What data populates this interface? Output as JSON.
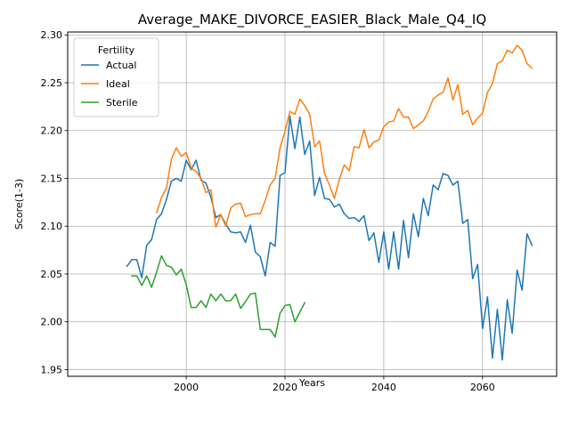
{
  "chart_data": {
    "type": "line",
    "title": "Average_MAKE_DIVORCE_EASIER_Black_Male_Q4_IQ",
    "xlabel": "Years",
    "ylabel": "Score(1-3)",
    "xlim": [
      1976,
      2075
    ],
    "ylim": [
      1.943,
      2.303
    ],
    "xticks": [
      2000,
      2020,
      2040,
      2060
    ],
    "yticks": [
      1.95,
      2.0,
      2.05,
      2.1,
      2.15,
      2.2,
      2.25,
      2.3
    ],
    "ytick_labels": [
      "1.95",
      "2.00",
      "2.05",
      "2.10",
      "2.15",
      "2.20",
      "2.25",
      "2.30"
    ],
    "grid": true,
    "legend": {
      "title": "Fertility",
      "placement": "top-left"
    },
    "series": [
      {
        "name": "Actual",
        "color": "#1f77b4",
        "x": [
          1988,
          1989,
          1990,
          1991,
          1992,
          1993,
          1994,
          1995,
          1996,
          1997,
          1998,
          1999,
          2000,
          2001,
          2002,
          2003,
          2004,
          2005,
          2006,
          2007,
          2008,
          2009,
          2010,
          2011,
          2012,
          2013,
          2014,
          2015,
          2016,
          2017,
          2018,
          2019,
          2020,
          2021,
          2022,
          2023,
          2024,
          2025,
          2026,
          2027,
          2028,
          2029,
          2030,
          2031,
          2032,
          2033,
          2034,
          2035,
          2036,
          2037,
          2038,
          2039,
          2040,
          2041,
          2042,
          2043,
          2044,
          2045,
          2046,
          2047,
          2048,
          2049,
          2050,
          2051,
          2052,
          2053,
          2054,
          2055,
          2056,
          2057,
          2058,
          2059,
          2060,
          2061,
          2062,
          2063,
          2064,
          2065,
          2066,
          2067,
          2068,
          2069,
          2070
        ],
        "values": [
          2.058,
          2.065,
          2.065,
          2.046,
          2.08,
          2.086,
          2.107,
          2.113,
          2.128,
          2.147,
          2.15,
          2.147,
          2.169,
          2.159,
          2.169,
          2.148,
          2.145,
          2.13,
          2.109,
          2.112,
          2.102,
          2.094,
          2.093,
          2.094,
          2.083,
          2.101,
          2.073,
          2.068,
          2.048,
          2.083,
          2.079,
          2.153,
          2.156,
          2.215,
          2.181,
          2.214,
          2.175,
          2.189,
          2.132,
          2.151,
          2.129,
          2.128,
          2.12,
          2.123,
          2.113,
          2.108,
          2.109,
          2.105,
          2.111,
          2.085,
          2.093,
          2.062,
          2.094,
          2.055,
          2.094,
          2.055,
          2.106,
          2.067,
          2.113,
          2.089,
          2.129,
          2.111,
          2.143,
          2.138,
          2.155,
          2.153,
          2.143,
          2.147,
          2.103,
          2.107,
          2.045,
          2.06,
          1.993,
          2.026,
          1.962,
          2.013,
          1.96,
          2.023,
          1.988,
          2.054,
          2.033,
          2.092,
          2.08
        ]
      },
      {
        "name": "Ideal",
        "color": "#ff7f0e",
        "x": [
          1994,
          1995,
          1996,
          1997,
          1998,
          1999,
          2000,
          2001,
          2002,
          2003,
          2004,
          2005,
          2006,
          2007,
          2008,
          2009,
          2010,
          2011,
          2012,
          2013,
          2014,
          2015,
          2016,
          2017,
          2018,
          2019,
          2020,
          2021,
          2022,
          2023,
          2024,
          2025,
          2026,
          2027,
          2028,
          2029,
          2030,
          2031,
          2032,
          2033,
          2034,
          2035,
          2036,
          2037,
          2038,
          2039,
          2040,
          2041,
          2042,
          2043,
          2044,
          2045,
          2046,
          2047,
          2048,
          2049,
          2050,
          2051,
          2052,
          2053,
          2054,
          2055,
          2056,
          2057,
          2058,
          2059,
          2060,
          2061,
          2062,
          2063,
          2064,
          2065,
          2066,
          2067,
          2068,
          2069,
          2070
        ],
        "values": [
          2.114,
          2.13,
          2.14,
          2.17,
          2.182,
          2.173,
          2.177,
          2.161,
          2.157,
          2.15,
          2.135,
          2.138,
          2.099,
          2.112,
          2.1,
          2.119,
          2.123,
          2.124,
          2.11,
          2.112,
          2.113,
          2.113,
          2.127,
          2.143,
          2.15,
          2.182,
          2.199,
          2.22,
          2.217,
          2.233,
          2.226,
          2.217,
          2.183,
          2.189,
          2.155,
          2.143,
          2.129,
          2.149,
          2.164,
          2.158,
          2.183,
          2.182,
          2.201,
          2.182,
          2.188,
          2.19,
          2.204,
          2.209,
          2.21,
          2.223,
          2.214,
          2.214,
          2.202,
          2.206,
          2.21,
          2.22,
          2.233,
          2.237,
          2.24,
          2.255,
          2.232,
          2.248,
          2.217,
          2.221,
          2.206,
          2.213,
          2.218,
          2.24,
          2.249,
          2.27,
          2.273,
          2.284,
          2.281,
          2.289,
          2.284,
          2.27,
          2.265
        ]
      },
      {
        "name": "Sterile",
        "color": "#2ca02c",
        "x": [
          1989,
          1990,
          1991,
          1992,
          1993,
          1994,
          1995,
          1996,
          1997,
          1998,
          1999,
          2000,
          2001,
          2002,
          2003,
          2004,
          2005,
          2006,
          2007,
          2008,
          2009,
          2010,
          2011,
          2012,
          2013,
          2014,
          2015,
          2016,
          2017,
          2018,
          2019,
          2020,
          2021,
          2022,
          2023,
          2024
        ],
        "values": [
          2.048,
          2.048,
          2.038,
          2.048,
          2.036,
          2.052,
          2.069,
          2.059,
          2.057,
          2.049,
          2.055,
          2.039,
          2.015,
          2.015,
          2.022,
          2.015,
          2.029,
          2.022,
          2.029,
          2.022,
          2.022,
          2.029,
          2.014,
          2.021,
          2.029,
          2.03,
          1.992,
          1.992,
          1.992,
          1.984,
          2.009,
          2.017,
          2.018,
          2.0,
          2.01,
          2.02
        ]
      }
    ]
  }
}
